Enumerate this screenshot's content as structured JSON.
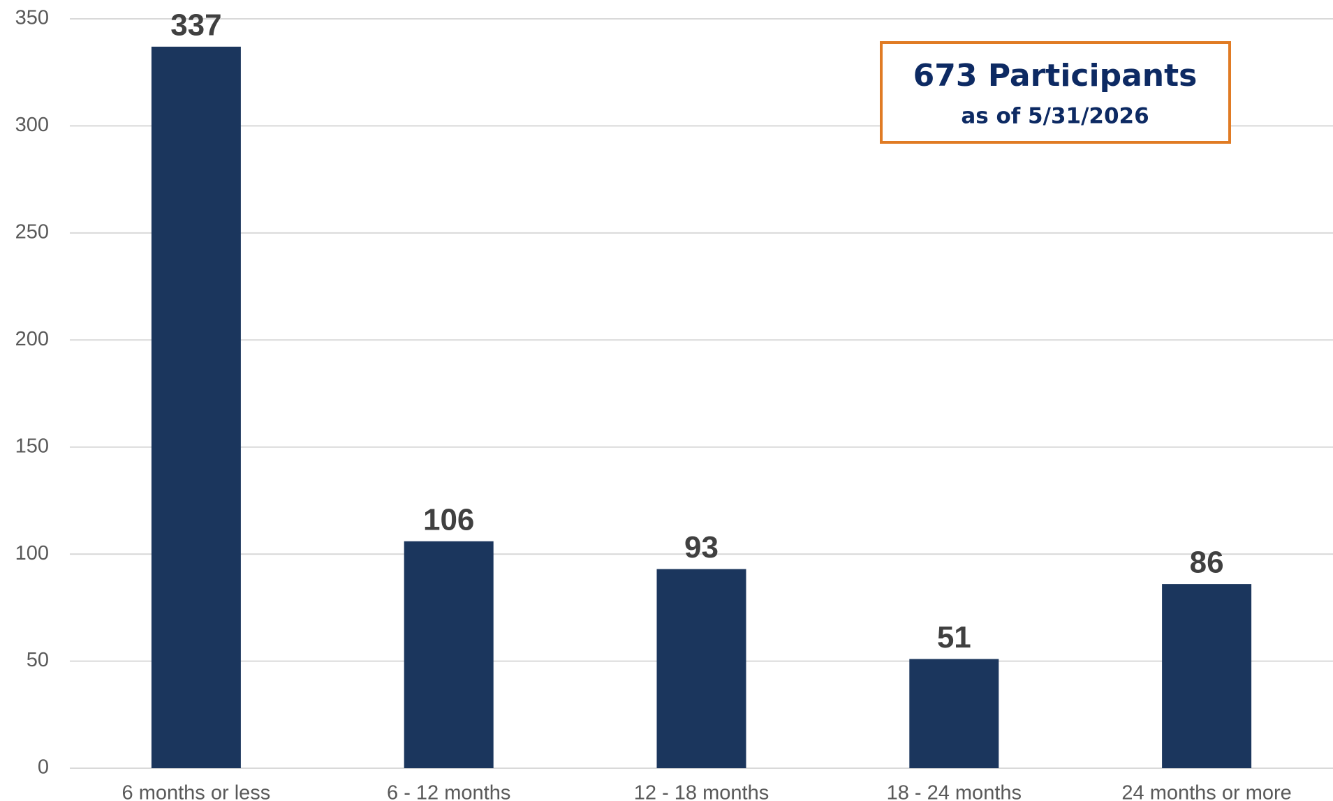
{
  "chart_data": {
    "type": "bar",
    "categories": [
      "6 months or less",
      "6 - 12 months",
      "12 - 18 months",
      "18 - 24 months",
      "24 months or more"
    ],
    "values": [
      337,
      106,
      93,
      51,
      86
    ],
    "color": "#1b365d",
    "ylim": [
      0,
      350
    ],
    "yticks": [
      0,
      50,
      100,
      150,
      200,
      250,
      300,
      350
    ],
    "grid": true,
    "annotation": {
      "title": "673 Participants",
      "subtitle": "as of 5/31/2026"
    }
  }
}
